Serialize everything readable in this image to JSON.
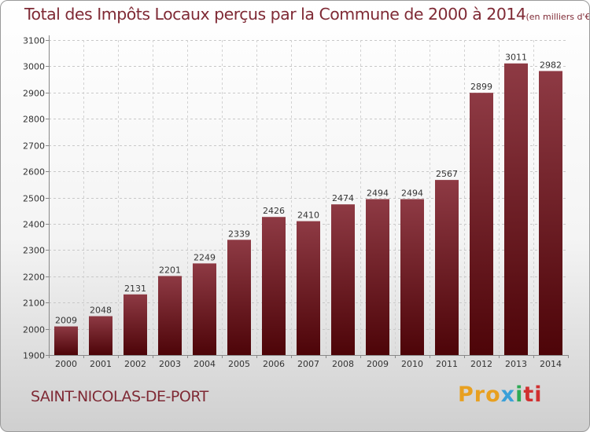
{
  "chart_data": {
    "type": "bar",
    "title": "Total des Impôts Locaux perçus par la Commune de 2000 à 2014",
    "unit_note": "(en milliers d'€)",
    "categories": [
      "2000",
      "2001",
      "2002",
      "2003",
      "2004",
      "2005",
      "2006",
      "2007",
      "2008",
      "2009",
      "2010",
      "2011",
      "2012",
      "2013",
      "2014"
    ],
    "values": [
      2009,
      2048,
      2131,
      2201,
      2249,
      2339,
      2426,
      2410,
      2474,
      2494,
      2494,
      2567,
      2899,
      3011,
      2982
    ],
    "ylim": [
      1900,
      3100
    ],
    "yticks": [
      1900,
      2000,
      2100,
      2200,
      2300,
      2400,
      2500,
      2600,
      2700,
      2800,
      2900,
      3000,
      3100
    ],
    "grid": true,
    "bar_color": "#7a1f28"
  },
  "footer": {
    "commune": "SAINT-NICOLAS-DE-PORT",
    "logo": [
      "Pro",
      "x",
      "i",
      "ti"
    ]
  }
}
